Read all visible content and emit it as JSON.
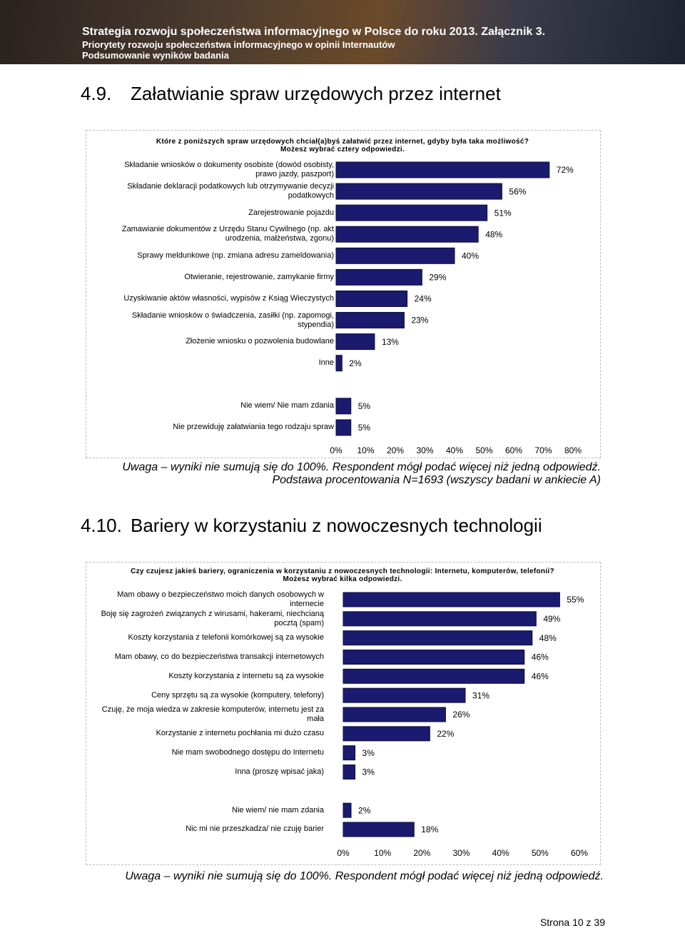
{
  "header": {
    "title": "Strategia rozwoju społeczeństwa informacyjnego w Polsce do roku 2013. Załącznik 3.",
    "subtitle": "Priorytety rozwoju społeczeństwa informacyjnego w opinii Internautów",
    "subtitle2": "Podsumowanie wyników badania"
  },
  "sections": [
    {
      "number": "4.9.",
      "heading": "Załatwianie spraw urzędowych przez internet",
      "note": "Uwaga – wyniki nie sumują się do 100%. Respondent mógł podać więcej niż jedną odpowiedź.",
      "note2": "Podstawa procentowania N=1693 (wszyscy badani w ankiecie A)"
    },
    {
      "number": "4.10.",
      "heading": "Bariery w korzystaniu z nowoczesnych technologii",
      "note": "Uwaga – wyniki nie sumują się do 100%. Respondent mógł podać więcej niż jedną odpowiedź."
    }
  ],
  "chart_data": [
    {
      "type": "bar",
      "orientation": "horizontal",
      "title": "Które z poniższych spraw urzędowych chciał(a)byś załatwić przez internet, gdyby była taka możliwość?",
      "subtitle": "Możesz wybrać cztery odpowiedzi.",
      "categories": [
        "Składanie wniosków o dokumenty osobiste (dowód osobisty, prawo jazdy, paszport)",
        "Składanie deklaracji podatkowych lub otrzymywanie decyzji podatkowych",
        "Zarejestrowanie pojazdu",
        "Zamawianie dokumentów z Urzędu Stanu Cywilnego (np. akt urodzenia, małżeństwa, zgonu)",
        "Sprawy meldunkowe (np. zmiana adresu zameldowania)",
        "Otwieranie, rejestrowanie, zamykanie firmy",
        "Uzyskiwanie aktów własności, wypisów z Ksiąg Wieczystych",
        "Składanie wniosków o świadczenia, zasiłki (np. zapomogi, stypendia)",
        "Złożenie wniosku o pozwolenia budowlane",
        "Inne",
        null,
        "Nie wiem/ Nie mam zdania",
        "Nie przewiduję załatwiania tego rodzaju spraw"
      ],
      "values": [
        72,
        56,
        51,
        48,
        40,
        29,
        24,
        23,
        13,
        2,
        null,
        5,
        5
      ],
      "value_labels": [
        "72%",
        "56%",
        "51%",
        "48%",
        "40%",
        "29%",
        "24%",
        "23%",
        "13%",
        "2%",
        null,
        "5%",
        "5%"
      ],
      "color": "#1a1a6e",
      "xlim": [
        0,
        80
      ],
      "xticks": [
        {
          "value": 0,
          "label": "0%"
        },
        {
          "value": 10,
          "label": "10%"
        },
        {
          "value": 20,
          "label": "20%"
        },
        {
          "value": 30,
          "label": "30%"
        },
        {
          "value": 40,
          "label": "40%"
        },
        {
          "value": 50,
          "label": "50%"
        },
        {
          "value": 60,
          "label": "60%"
        },
        {
          "value": 70,
          "label": "70%"
        },
        {
          "value": 80,
          "label": "80%"
        }
      ]
    },
    {
      "type": "bar",
      "orientation": "horizontal",
      "title": "Czy czujesz jakieś bariery, ograniczenia w korzystaniu z nowoczesnych technologii: Internetu, komputerów, telefonii?",
      "subtitle": "Możesz wybrać kilka odpowiedzi.",
      "categories": [
        "Mam obawy o bezpieczeństwo moich danych osobowych w internecie",
        "Boję się zagrożeń związanych z wirusami, hakerami, niechcianą pocztą (spam)",
        "Koszty korzystania z telefonii komórkowej są za wysokie",
        "Mam obawy, co do bezpieczeństwa transakcji internetowych",
        "Koszty korzystania z internetu są za wysokie",
        "Ceny sprzętu są za wysokie (komputery, telefony)",
        "Czuję, że moja wiedza w zakresie komputerów, internetu jest za mała",
        "Korzystanie z internetu pochłania mi dużo czasu",
        "Nie mam swobodnego dostępu do Internetu",
        "Inna (proszę wpisać jaka)",
        null,
        "Nie wiem/ nie mam zdania",
        "Nic mi nie przeszkadza/ nie czuję barier"
      ],
      "values": [
        55,
        49,
        48,
        46,
        46,
        31,
        26,
        22,
        3,
        3,
        null,
        2,
        18
      ],
      "value_labels": [
        "55%",
        "49%",
        "48%",
        "46%",
        "46%",
        "31%",
        "26%",
        "22%",
        "3%",
        "3%",
        null,
        "2%",
        "18%"
      ],
      "color": "#1a1a6e",
      "xlim": [
        0,
        60
      ],
      "xticks": [
        {
          "value": 0,
          "label": "0%"
        },
        {
          "value": 10,
          "label": "10%"
        },
        {
          "value": 20,
          "label": "20%"
        },
        {
          "value": 30,
          "label": "30%"
        },
        {
          "value": 40,
          "label": "40%"
        },
        {
          "value": 50,
          "label": "50%"
        },
        {
          "value": 60,
          "label": "60%"
        }
      ]
    }
  ],
  "footer": "Strona 10 z 39"
}
